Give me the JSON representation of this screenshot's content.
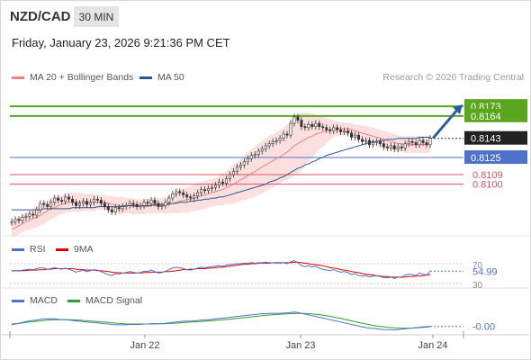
{
  "header": {
    "pair": "NZD/CAD",
    "timeframe": "30 MIN",
    "datetime": "Friday, January 23, 2026 9:21:36 PM CET"
  },
  "legends": {
    "price": [
      {
        "label": "MA 20 + Bollinger Bands",
        "color": "#f08080"
      },
      {
        "label": "MA 50",
        "color": "#2c5596"
      }
    ],
    "rsi": [
      {
        "label": "RSI",
        "color": "#4f72c9"
      },
      {
        "label": "9MA",
        "color": "#e00000"
      }
    ],
    "macd": [
      {
        "label": "MACD",
        "color": "#4f72c9"
      },
      {
        "label": "MACD Signal",
        "color": "#2e9e2e"
      }
    ]
  },
  "credit": "Research © 2026 Trading Central",
  "colors": {
    "up": "#333333",
    "down": "#333333",
    "resistance": "#5aa61e",
    "pivot": "#4f72c9",
    "support": "#e05060",
    "arrow": "#2c5fa0",
    "band_fill": "#fbdada"
  },
  "chart_data": [
    {
      "type": "candlestick",
      "title": "NZD/CAD",
      "x_ticks": [
        "Jan 22",
        "Jan 23",
        "Jan 24"
      ],
      "ylim": [
        0.8055,
        0.819
      ],
      "levels": [
        {
          "value": 0.8173,
          "label": "0.8173",
          "kind": "resistance"
        },
        {
          "value": 0.8164,
          "label": "0.8164",
          "kind": "resistance"
        },
        {
          "value": 0.8143,
          "label": "0.8143",
          "kind": "last"
        },
        {
          "value": 0.8125,
          "label": "0.8125",
          "kind": "pivot"
        },
        {
          "value": 0.8109,
          "label": "0.8109",
          "kind": "support"
        },
        {
          "value": 0.81,
          "label": "0.8100",
          "kind": "support"
        }
      ],
      "close": [
        0.8065,
        0.8067,
        0.8066,
        0.8069,
        0.807,
        0.8072,
        0.8071,
        0.8076,
        0.8082,
        0.8081,
        0.8079,
        0.8083,
        0.8087,
        0.8085,
        0.8084,
        0.8088,
        0.8086,
        0.8083,
        0.808,
        0.8082,
        0.8084,
        0.8081,
        0.8083,
        0.8086,
        0.8085,
        0.8082,
        0.8079,
        0.8076,
        0.8074,
        0.8078,
        0.8077,
        0.8079,
        0.808,
        0.8082,
        0.8081,
        0.8079,
        0.808,
        0.8083,
        0.8082,
        0.8085,
        0.8082,
        0.8079,
        0.808,
        0.8083,
        0.8087,
        0.8091,
        0.8093,
        0.8092,
        0.809,
        0.8088,
        0.8087,
        0.8089,
        0.8092,
        0.8095,
        0.8094,
        0.8096,
        0.8097,
        0.8099,
        0.8102,
        0.8101,
        0.8105,
        0.8109,
        0.8112,
        0.8116,
        0.8118,
        0.8121,
        0.8124,
        0.8127,
        0.8128,
        0.8131,
        0.8133,
        0.8136,
        0.8138,
        0.814,
        0.8141,
        0.8143,
        0.8147,
        0.8146,
        0.8157,
        0.8163,
        0.816,
        0.8154,
        0.8153,
        0.8156,
        0.8154,
        0.8157,
        0.8154,
        0.8153,
        0.8151,
        0.815,
        0.8153,
        0.8151,
        0.8149,
        0.815,
        0.8148,
        0.8144,
        0.8146,
        0.8142,
        0.814,
        0.8141,
        0.8137,
        0.8139,
        0.814,
        0.8138,
        0.8135,
        0.8134,
        0.8136,
        0.8133,
        0.8135,
        0.8134,
        0.8138,
        0.814,
        0.8139,
        0.8137,
        0.8141,
        0.8139,
        0.8137,
        0.8143
      ],
      "ma20": [
        0.8058,
        0.8059,
        0.8061,
        0.8063,
        0.8065,
        0.8066,
        0.8068,
        0.8069,
        0.8071,
        0.8073,
        0.8075,
        0.8077,
        0.8078,
        0.808,
        0.8081,
        0.8082,
        0.8083,
        0.8083,
        0.8083,
        0.8083,
        0.8083,
        0.8083,
        0.8083,
        0.8083,
        0.8083,
        0.8083,
        0.8083,
        0.8082,
        0.8081,
        0.8081,
        0.808,
        0.808,
        0.808,
        0.808,
        0.8079,
        0.8079,
        0.8079,
        0.8079,
        0.8079,
        0.808,
        0.808,
        0.808,
        0.808,
        0.808,
        0.8081,
        0.8082,
        0.8083,
        0.8084,
        0.8085,
        0.8085,
        0.8086,
        0.8087,
        0.8088,
        0.8089,
        0.809,
        0.8091,
        0.8092,
        0.8093,
        0.8094,
        0.8095,
        0.8097,
        0.8098,
        0.81,
        0.8102,
        0.8104,
        0.8106,
        0.8108,
        0.811,
        0.8112,
        0.8114,
        0.8116,
        0.8118,
        0.812,
        0.8122,
        0.8124,
        0.8126,
        0.8128,
        0.813,
        0.8133,
        0.8136,
        0.8138,
        0.814,
        0.8142,
        0.8144,
        0.8145,
        0.8147,
        0.8148,
        0.8149,
        0.815,
        0.8151,
        0.8152,
        0.8152,
        0.8152,
        0.8152,
        0.8152,
        0.8151,
        0.815,
        0.8149,
        0.8148,
        0.8147,
        0.8146,
        0.8145,
        0.8144,
        0.8143,
        0.8142,
        0.8141,
        0.814,
        0.8139,
        0.8138,
        0.8138,
        0.8137,
        0.8137,
        0.8137,
        0.8137,
        0.8137,
        0.8137,
        0.8137,
        0.8138
      ],
      "bb_upper": [
        0.8066,
        0.8067,
        0.8069,
        0.8071,
        0.8073,
        0.8075,
        0.8077,
        0.8079,
        0.8081,
        0.8083,
        0.8085,
        0.8087,
        0.8088,
        0.8089,
        0.809,
        0.8091,
        0.8092,
        0.8092,
        0.8092,
        0.8092,
        0.8091,
        0.8091,
        0.8091,
        0.8091,
        0.809,
        0.809,
        0.809,
        0.8089,
        0.8089,
        0.8088,
        0.8088,
        0.8088,
        0.8087,
        0.8087,
        0.8087,
        0.8086,
        0.8086,
        0.8086,
        0.8086,
        0.8087,
        0.8087,
        0.8087,
        0.8087,
        0.8088,
        0.8089,
        0.8091,
        0.8093,
        0.8095,
        0.8096,
        0.8097,
        0.8098,
        0.8099,
        0.8101,
        0.8102,
        0.8103,
        0.8104,
        0.8105,
        0.8106,
        0.8108,
        0.811,
        0.8112,
        0.8115,
        0.8118,
        0.8121,
        0.8124,
        0.8127,
        0.813,
        0.8133,
        0.8136,
        0.8138,
        0.8141,
        0.8143,
        0.8145,
        0.8147,
        0.8149,
        0.8151,
        0.8153,
        0.8156,
        0.816,
        0.8164,
        0.8166,
        0.8167,
        0.8167,
        0.8167,
        0.8166,
        0.8165,
        0.8164,
        0.8163,
        0.8162,
        0.8161,
        0.816,
        0.8159,
        0.8158,
        0.8158,
        0.8157,
        0.8157,
        0.8156,
        0.8156,
        0.8155,
        0.8155,
        0.8154,
        0.8153,
        0.8152,
        0.8151,
        0.815,
        0.8149,
        0.8148,
        0.8147,
        0.8146,
        0.8145,
        0.8145,
        0.8145,
        0.8145,
        0.8145,
        0.8145,
        0.8145,
        0.8145,
        0.8146
      ],
      "bb_lower": [
        0.805,
        0.8051,
        0.8053,
        0.8055,
        0.8057,
        0.8057,
        0.8059,
        0.8059,
        0.8061,
        0.8063,
        0.8065,
        0.8067,
        0.8068,
        0.8071,
        0.8072,
        0.8073,
        0.8074,
        0.8074,
        0.8074,
        0.8074,
        0.8075,
        0.8075,
        0.8075,
        0.8075,
        0.8076,
        0.8076,
        0.8076,
        0.8075,
        0.8073,
        0.8074,
        0.8072,
        0.8072,
        0.8073,
        0.8073,
        0.8071,
        0.8072,
        0.8072,
        0.8072,
        0.8072,
        0.8073,
        0.8073,
        0.8073,
        0.8073,
        0.8072,
        0.8073,
        0.8073,
        0.8073,
        0.8073,
        0.8074,
        0.8073,
        0.8074,
        0.8075,
        0.8075,
        0.8076,
        0.8077,
        0.8078,
        0.8079,
        0.808,
        0.808,
        0.808,
        0.8082,
        0.8081,
        0.8082,
        0.8083,
        0.8084,
        0.8085,
        0.8086,
        0.8087,
        0.8088,
        0.809,
        0.8091,
        0.8093,
        0.8095,
        0.8097,
        0.8099,
        0.8101,
        0.8103,
        0.8104,
        0.8106,
        0.8108,
        0.811,
        0.8113,
        0.8117,
        0.8121,
        0.8124,
        0.8129,
        0.8132,
        0.8135,
        0.8138,
        0.8141,
        0.8144,
        0.8145,
        0.8146,
        0.8146,
        0.8147,
        0.8145,
        0.8144,
        0.8142,
        0.8141,
        0.8139,
        0.8138,
        0.8137,
        0.8136,
        0.8135,
        0.8134,
        0.8133,
        0.8132,
        0.8131,
        0.813,
        0.8131,
        0.8129,
        0.8129,
        0.8129,
        0.8129,
        0.8129,
        0.8129,
        0.8129,
        0.813
      ],
      "ma50": [
        0.8076,
        0.8076,
        0.8076,
        0.8076,
        0.8076,
        0.8076,
        0.8076,
        0.8076,
        0.8076,
        0.8077,
        0.8077,
        0.8077,
        0.8077,
        0.8077,
        0.8077,
        0.8077,
        0.8077,
        0.8078,
        0.8078,
        0.8078,
        0.8078,
        0.8078,
        0.8078,
        0.8078,
        0.8079,
        0.8079,
        0.8079,
        0.8079,
        0.8079,
        0.8079,
        0.8079,
        0.8079,
        0.808,
        0.808,
        0.808,
        0.808,
        0.808,
        0.808,
        0.808,
        0.808,
        0.8081,
        0.8081,
        0.8081,
        0.8081,
        0.8082,
        0.8082,
        0.8082,
        0.8083,
        0.8083,
        0.8083,
        0.8084,
        0.8084,
        0.8085,
        0.8085,
        0.8086,
        0.8086,
        0.8087,
        0.8087,
        0.8088,
        0.8088,
        0.8089,
        0.809,
        0.8091,
        0.8092,
        0.8093,
        0.8094,
        0.8095,
        0.8096,
        0.8097,
        0.8098,
        0.8099,
        0.81,
        0.8102,
        0.8103,
        0.8104,
        0.8106,
        0.8107,
        0.8109,
        0.8111,
        0.8113,
        0.8115,
        0.8116,
        0.8118,
        0.8119,
        0.8121,
        0.8122,
        0.8124,
        0.8125,
        0.8127,
        0.8128,
        0.8129,
        0.813,
        0.8131,
        0.8132,
        0.8133,
        0.8134,
        0.8135,
        0.8136,
        0.8137,
        0.8138,
        0.8139,
        0.814,
        0.814,
        0.8141,
        0.8141,
        0.8142,
        0.8142,
        0.8142,
        0.8143,
        0.8143,
        0.8143,
        0.8143,
        0.8143,
        0.8143,
        0.8144,
        0.8144,
        0.8144,
        0.8144
      ]
    },
    {
      "type": "line",
      "title": "RSI",
      "y_ticks": [
        "70",
        "30"
      ],
      "last_label": "54.99",
      "series": [
        {
          "name": "RSI",
          "values": [
            55,
            56,
            55,
            57,
            58,
            59,
            58,
            60,
            62,
            61,
            59,
            60,
            62,
            60,
            59,
            61,
            59,
            56,
            53,
            55,
            57,
            54,
            56,
            58,
            57,
            54,
            51,
            48,
            46,
            50,
            49,
            51,
            52,
            54,
            53,
            51,
            52,
            55,
            54,
            57,
            54,
            51,
            52,
            55,
            58,
            61,
            63,
            62,
            60,
            58,
            57,
            59,
            61,
            63,
            62,
            63,
            64,
            65,
            66,
            65,
            67,
            68,
            69,
            70,
            70,
            71,
            71,
            72,
            71,
            72,
            72,
            73,
            72,
            72,
            71,
            71,
            72,
            70,
            74,
            76,
            72,
            66,
            64,
            66,
            63,
            65,
            61,
            59,
            57,
            56,
            58,
            55,
            53,
            54,
            52,
            48,
            50,
            46,
            45,
            46,
            43,
            45,
            46,
            44,
            42,
            41,
            43,
            40,
            43,
            42,
            47,
            49,
            48,
            46,
            51,
            49,
            47,
            55
          ]
        },
        {
          "name": "9MA",
          "values": [
            56,
            56,
            56,
            56,
            56,
            57,
            57,
            57,
            58,
            58,
            59,
            59,
            60,
            60,
            60,
            60,
            60,
            60,
            59,
            58,
            58,
            57,
            57,
            57,
            56,
            56,
            55,
            54,
            53,
            52,
            52,
            51,
            51,
            51,
            51,
            51,
            51,
            52,
            52,
            53,
            53,
            53,
            53,
            54,
            54,
            55,
            56,
            57,
            58,
            58,
            59,
            59,
            60,
            60,
            60,
            61,
            61,
            62,
            63,
            63,
            64,
            65,
            66,
            67,
            68,
            69,
            69,
            70,
            70,
            71,
            71,
            71,
            71,
            72,
            72,
            72,
            72,
            72,
            72,
            73,
            73,
            72,
            71,
            70,
            69,
            68,
            67,
            66,
            64,
            62,
            61,
            60,
            58,
            57,
            56,
            54,
            53,
            52,
            50,
            49,
            48,
            47,
            46,
            45,
            44,
            44,
            43,
            43,
            43,
            43,
            43,
            44,
            44,
            45,
            45,
            46,
            47,
            48
          ]
        }
      ]
    },
    {
      "type": "line",
      "title": "MACD",
      "last_label": "-0.00",
      "series": [
        {
          "name": "MACD",
          "values": [
            0.2,
            0.3,
            0.4,
            0.5,
            0.6,
            0.7,
            0.75,
            0.8,
            0.9,
            0.95,
            0.95,
            0.95,
            0.95,
            0.9,
            0.85,
            0.85,
            0.8,
            0.75,
            0.7,
            0.65,
            0.6,
            0.55,
            0.5,
            0.5,
            0.45,
            0.4,
            0.35,
            0.3,
            0.25,
            0.2,
            0.2,
            0.2,
            0.2,
            0.25,
            0.25,
            0.25,
            0.25,
            0.3,
            0.3,
            0.35,
            0.35,
            0.35,
            0.35,
            0.4,
            0.45,
            0.5,
            0.55,
            0.6,
            0.65,
            0.65,
            0.65,
            0.7,
            0.75,
            0.8,
            0.8,
            0.85,
            0.9,
            0.95,
            1.0,
            1.05,
            1.1,
            1.15,
            1.2,
            1.25,
            1.3,
            1.35,
            1.4,
            1.45,
            1.5,
            1.55,
            1.6,
            1.6,
            1.65,
            1.65,
            1.65,
            1.65,
            1.7,
            1.7,
            1.75,
            1.8,
            1.75,
            1.65,
            1.55,
            1.45,
            1.35,
            1.25,
            1.15,
            1.05,
            0.95,
            0.85,
            0.75,
            0.65,
            0.55,
            0.45,
            0.35,
            0.25,
            0.15,
            0.05,
            -0.05,
            -0.15,
            -0.2,
            -0.25,
            -0.3,
            -0.35,
            -0.4,
            -0.4,
            -0.4,
            -0.45,
            -0.4,
            -0.35,
            -0.3,
            -0.25,
            -0.2,
            -0.15,
            -0.1,
            -0.05,
            -0.02,
            0.0
          ]
        },
        {
          "name": "MACD Signal",
          "values": [
            0.3,
            0.35,
            0.4,
            0.45,
            0.5,
            0.55,
            0.6,
            0.65,
            0.7,
            0.75,
            0.8,
            0.82,
            0.85,
            0.85,
            0.85,
            0.85,
            0.84,
            0.82,
            0.8,
            0.78,
            0.75,
            0.72,
            0.68,
            0.65,
            0.62,
            0.58,
            0.55,
            0.5,
            0.46,
            0.42,
            0.38,
            0.35,
            0.32,
            0.3,
            0.3,
            0.3,
            0.3,
            0.3,
            0.3,
            0.3,
            0.32,
            0.33,
            0.34,
            0.35,
            0.37,
            0.4,
            0.42,
            0.45,
            0.48,
            0.52,
            0.55,
            0.58,
            0.6,
            0.63,
            0.66,
            0.7,
            0.73,
            0.77,
            0.8,
            0.84,
            0.88,
            0.92,
            0.96,
            1.0,
            1.05,
            1.1,
            1.15,
            1.2,
            1.25,
            1.3,
            1.35,
            1.4,
            1.44,
            1.48,
            1.5,
            1.52,
            1.55,
            1.58,
            1.6,
            1.62,
            1.63,
            1.63,
            1.62,
            1.6,
            1.57,
            1.53,
            1.48,
            1.42,
            1.35,
            1.27,
            1.18,
            1.09,
            1.0,
            0.9,
            0.8,
            0.7,
            0.6,
            0.5,
            0.4,
            0.3,
            0.22,
            0.14,
            0.07,
            0.0,
            -0.05,
            -0.1,
            -0.14,
            -0.18,
            -0.2,
            -0.22,
            -0.22,
            -0.22,
            -0.2,
            -0.18,
            -0.15,
            -0.12,
            -0.08,
            -0.04
          ]
        }
      ]
    }
  ]
}
